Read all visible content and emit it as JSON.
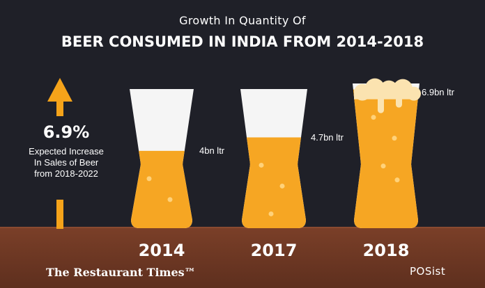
{
  "header": {
    "title_line1": "Growth In Quantity Of",
    "title_line2": "BEER CONSUMED IN INDIA FROM 2014-2018"
  },
  "side_panel": {
    "percent": "6.9%",
    "description": "Expected Increase In Sales of Beer from 2018-2022"
  },
  "footer": {
    "brand": "The Restaurant Times™",
    "partner": "POSist"
  },
  "colors": {
    "background": "#1f2028",
    "beer": "#f6a623",
    "glass": "#f5f5f5",
    "floor": "#6b3522",
    "arrow": "#f5a31a"
  },
  "chart_data": {
    "type": "bar",
    "title": "Growth In Quantity Of BEER CONSUMED IN INDIA FROM 2014-2018",
    "categories": [
      "2014",
      "2017",
      "2018"
    ],
    "values": [
      4,
      4.7,
      6.9
    ],
    "unit": "bn ltr",
    "data_labels": [
      "4bn ltr",
      "4.7bn ltr",
      "6.9bn ltr"
    ],
    "ylim": [
      0,
      7.2
    ],
    "grid": false,
    "legend": "none"
  }
}
